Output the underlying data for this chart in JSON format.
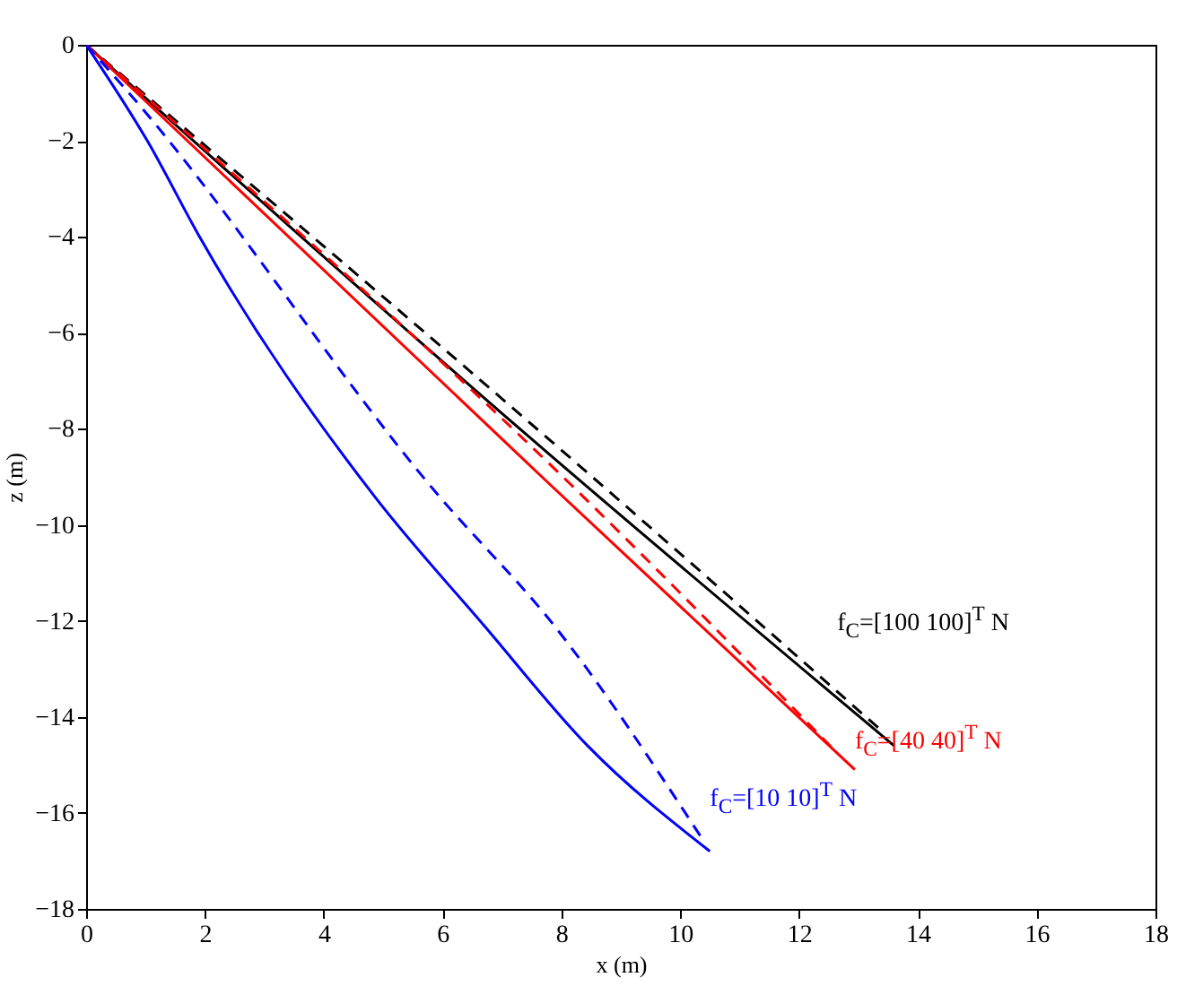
{
  "chart_data": {
    "type": "line",
    "xlabel": "x (m)",
    "ylabel": "z (m)",
    "xlim": [
      0,
      18
    ],
    "ylim": [
      -18,
      0
    ],
    "xticks": [
      0,
      2,
      4,
      6,
      8,
      10,
      12,
      14,
      16,
      18
    ],
    "yticks": [
      -18,
      -16,
      -14,
      -12,
      -10,
      -8,
      -6,
      -4,
      -2,
      0
    ],
    "grid": false,
    "marker": "none",
    "series": [
      {
        "color": "#000000",
        "line_style": "solid",
        "x": [
          0,
          7.3,
          13.6
        ],
        "values": [
          0,
          -8,
          -14.6
        ]
      },
      {
        "color": "#ff0000",
        "line_style": "solid",
        "x": [
          0,
          7.8,
          12.94
        ],
        "values": [
          0,
          -9.15,
          -15.1
        ]
      },
      {
        "color": "#0000ff",
        "line_style": "solid",
        "x": [
          0,
          1.03,
          1.91,
          4.85,
          6.7,
          8.44,
          10.5
        ],
        "values": [
          0,
          -2,
          -4,
          -9.4,
          -12.1,
          -14.6,
          -16.8
        ]
      },
      {
        "color": "#000000",
        "line_style": "dashed",
        "x": [
          0,
          8.24,
          13.4
        ],
        "values": [
          0,
          -8.7,
          -14.3
        ]
      },
      {
        "color": "#ff0000",
        "line_style": "dashed",
        "x": [
          0,
          8.15,
          12.6
        ],
        "values": [
          0,
          -9.15,
          -14.7
        ]
      },
      {
        "color": "#0000ff",
        "line_style": "dashed",
        "x": [
          0,
          0.74,
          5.94,
          7.88,
          10.35
        ],
        "values": [
          0,
          -1.03,
          -9.4,
          -12.1,
          -16.5
        ]
      }
    ],
    "annotations": [
      {
        "text": "f$_{C}$=[100 100]$^{T}$ N",
        "x": 12.4,
        "y": -13.3
      },
      {
        "text": "f$_{C}$=[40 40]$^{T}$ N",
        "x": 12.94,
        "y": -15.1
      },
      {
        "text": "f$_{C}$=[10 10]$^{T}$ N",
        "x": 10.5,
        "y": -16.8
      }
    ]
  }
}
